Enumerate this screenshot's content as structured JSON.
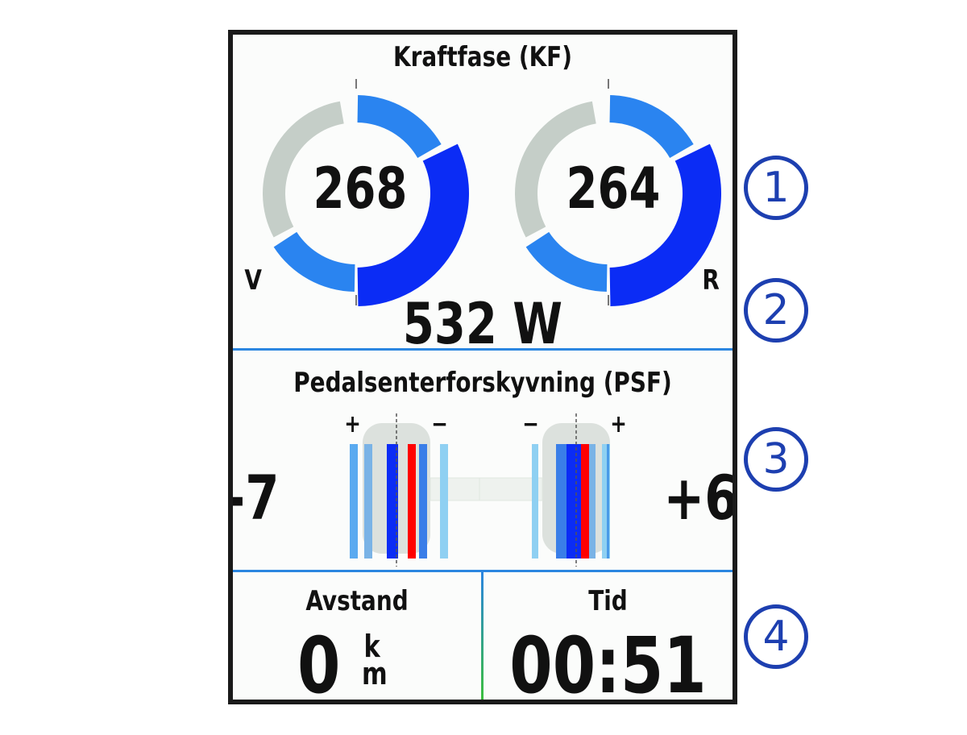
{
  "power_phase": {
    "title": "Kraftfase (KF)",
    "left": {
      "value": "268",
      "side_label": "V"
    },
    "right": {
      "value": "264",
      "side_label": "R"
    },
    "total_power": "532 W"
  },
  "pco": {
    "title": "Pedalsenterforskyvning (PSF)",
    "left": {
      "value": "-7",
      "plus": "+",
      "minus": "−"
    },
    "right": {
      "value": "+6",
      "plus": "+",
      "minus": "−"
    }
  },
  "fields": [
    {
      "label": "Avstand",
      "value": "0",
      "unit_top": "k",
      "unit_bottom": "m"
    },
    {
      "label": "Tid",
      "value": "00:51"
    }
  ],
  "callouts": [
    "1",
    "2",
    "3",
    "4"
  ],
  "colors": {
    "gray_arc": "#c5cec8",
    "light_blue": "#2a84f0",
    "dark_blue": "#0b2cf5",
    "red_marker": "#ff0000",
    "divider": "#2b86e0",
    "callout": "#1d3fb0"
  }
}
